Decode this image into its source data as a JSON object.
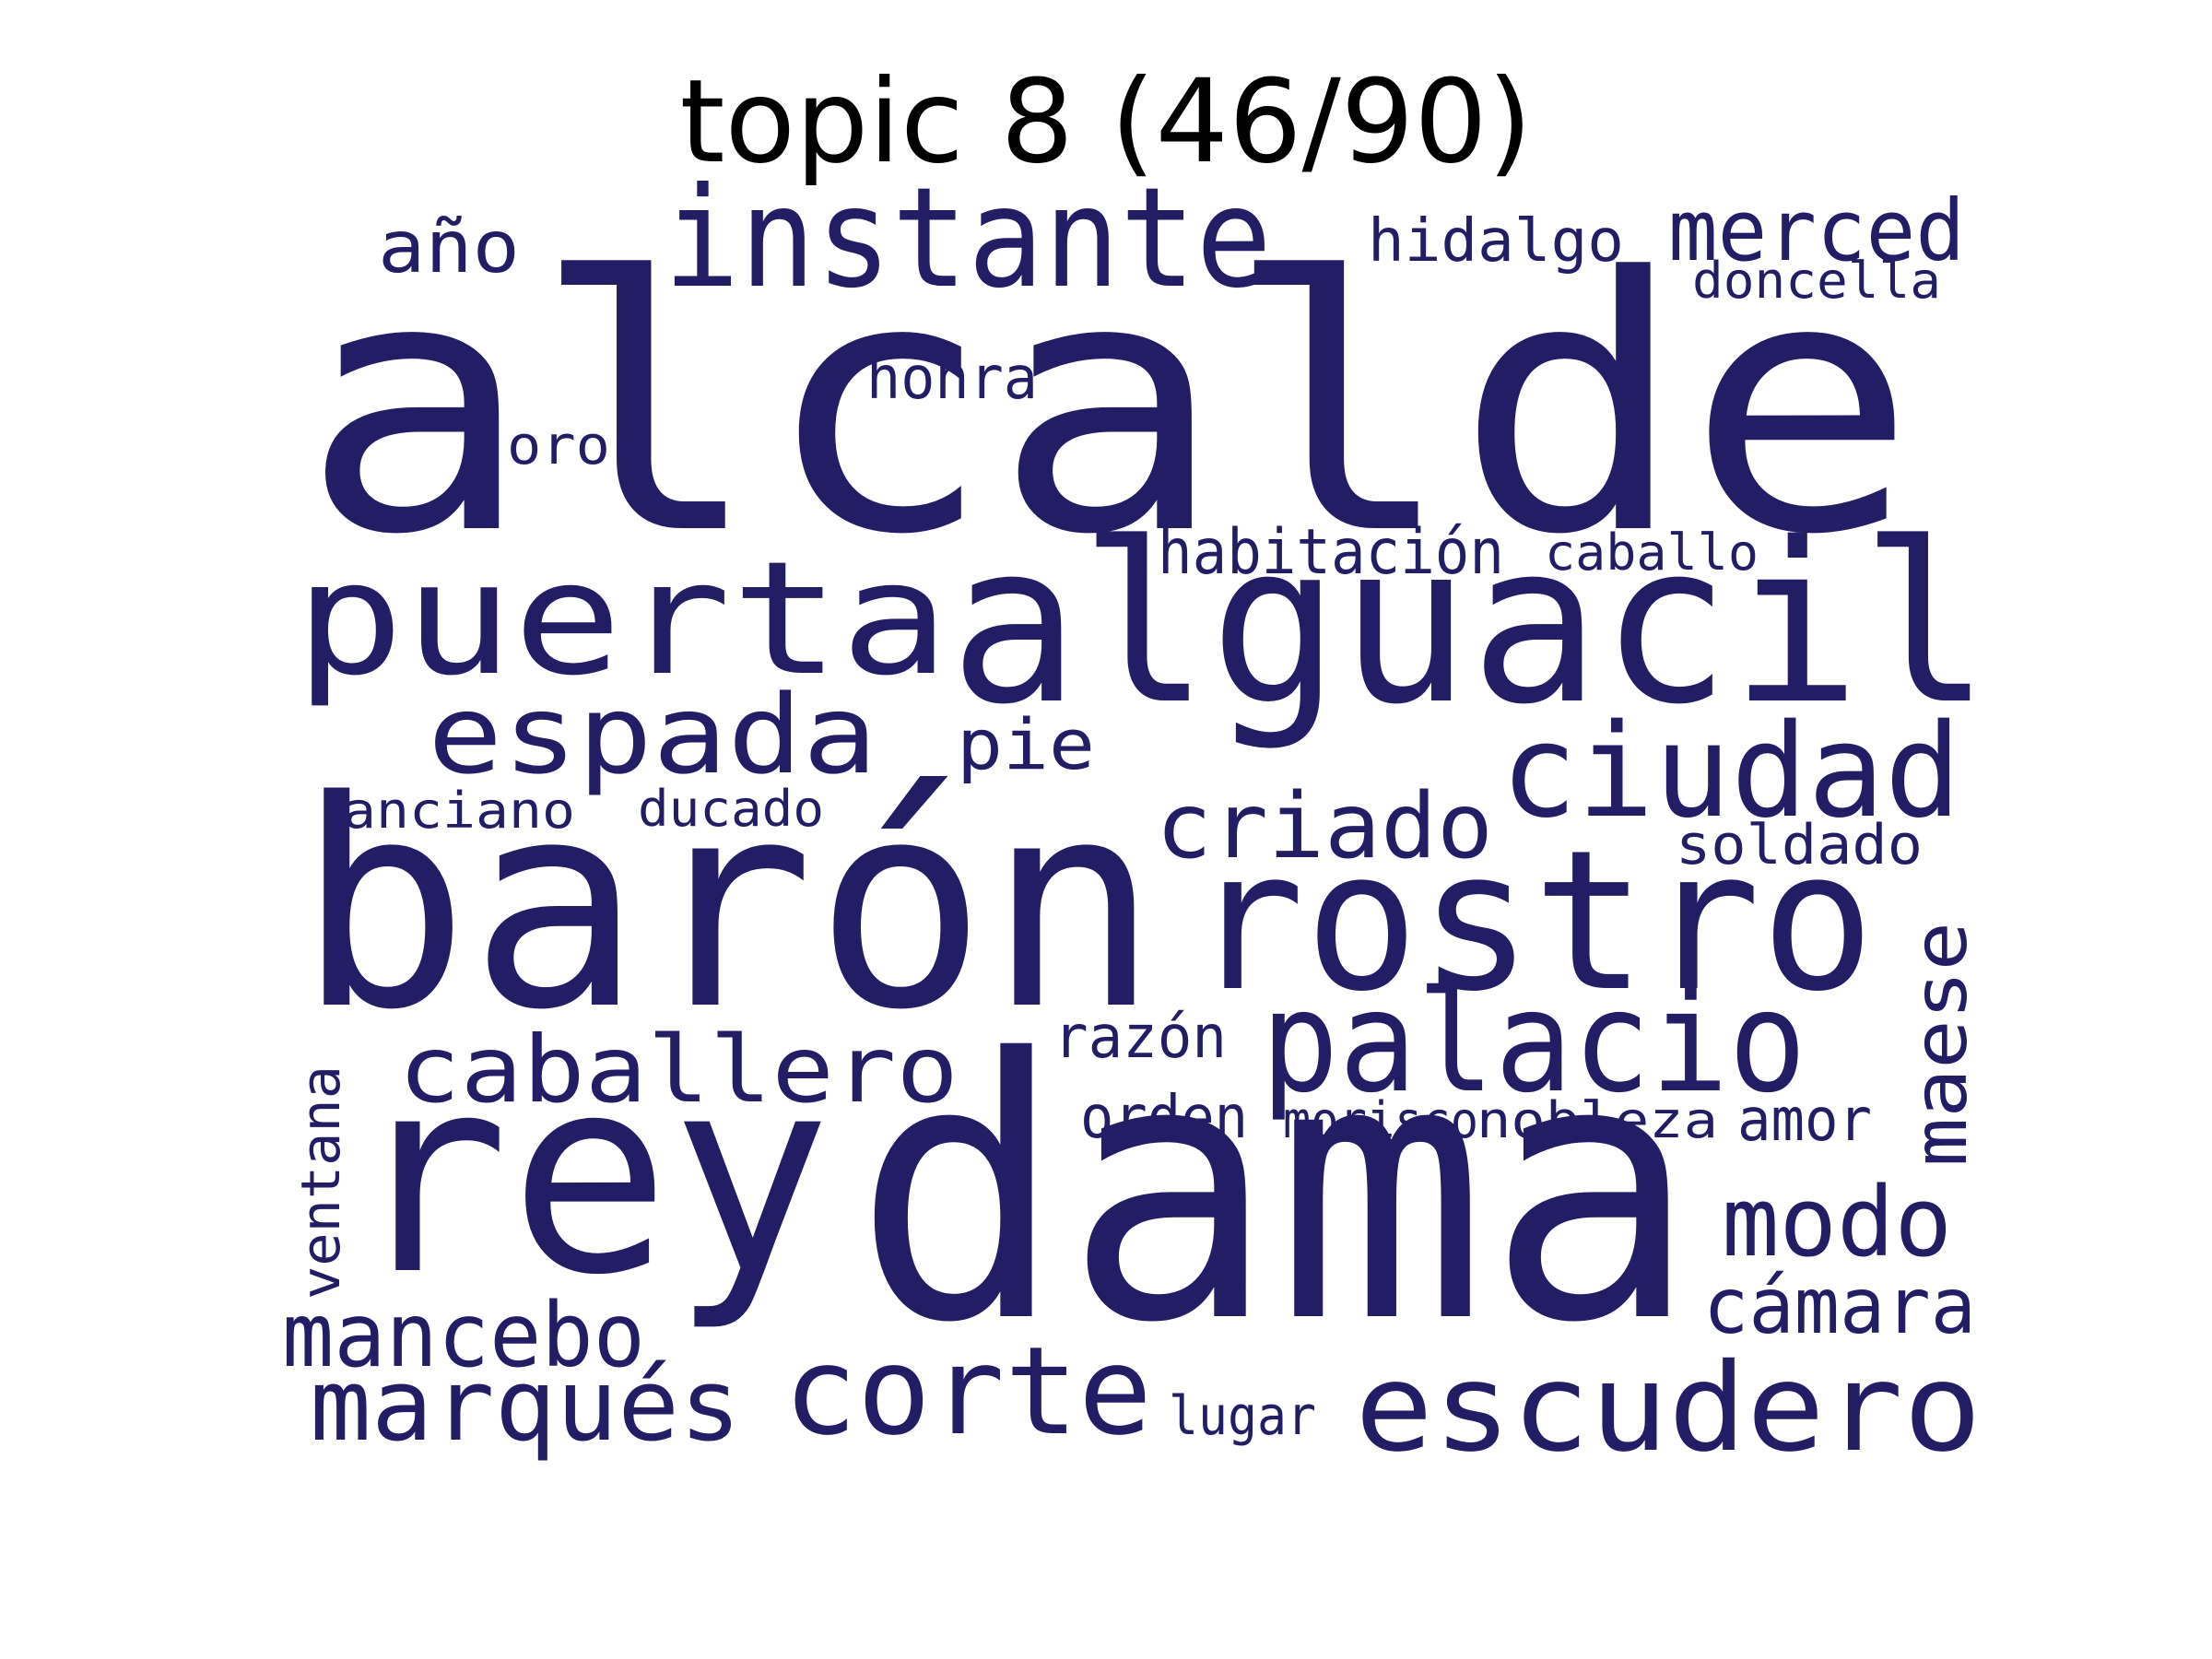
{
  "title": "topic 8 (46/90)",
  "word_color": "#231d66",
  "words": [
    "alcalde",
    "instante",
    "año",
    "hidalgo",
    "merced",
    "doncella",
    "honra",
    "oro",
    "puerta",
    "alguacil",
    "habitación",
    "caballo",
    "espada",
    "pie",
    "ciudad",
    "criado",
    "anciano",
    "ducado",
    "soldado",
    "barón",
    "rostro",
    "maese",
    "caballero",
    "palacio",
    "razón",
    "ventana",
    "orden",
    "morisco",
    "nobleza",
    "amor",
    "rey",
    "dama",
    "modo",
    "cámara",
    "mancebo",
    "marqués",
    "corte",
    "escudero",
    "lugar"
  ]
}
